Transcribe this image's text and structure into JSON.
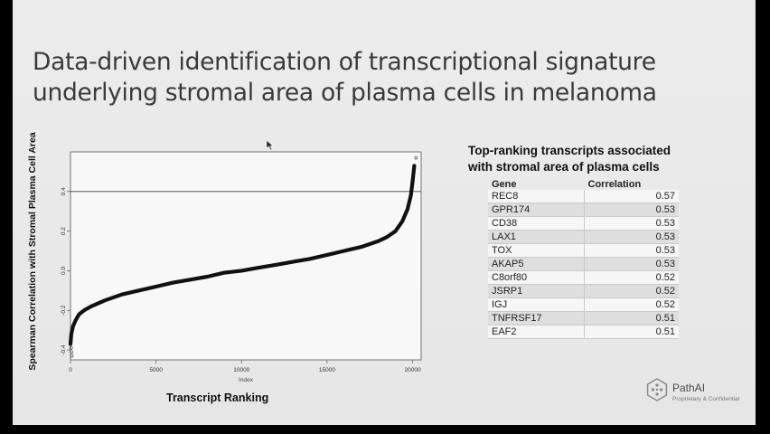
{
  "slide": {
    "title_line1": "Data-driven identification of transcriptional signature",
    "title_line2": "underlying stromal area of plasma cells in melanoma"
  },
  "chart_data": {
    "type": "scatter",
    "ylabel": "Spearman Correlation with Stromal Plasma Cell Area",
    "xlabel": "Transcript Ranking",
    "inner_xlabel": "Index",
    "xlim": [
      0,
      20500
    ],
    "ylim": [
      -0.45,
      0.6
    ],
    "x_ticks": [
      0,
      5000,
      10000,
      15000,
      20000
    ],
    "y_ticks": [
      -0.4,
      -0.2,
      0.0,
      0.2,
      0.4
    ],
    "y_tick_labels": [
      "-0.4",
      "-0.2",
      "0.0",
      "0.2",
      "0.4"
    ],
    "threshold_line": 0.4,
    "curve": {
      "x": [
        0,
        50,
        150,
        300,
        500,
        800,
        1200,
        2000,
        3000,
        4000,
        5000,
        6000,
        7000,
        8000,
        9000,
        10000,
        11000,
        12000,
        13000,
        14000,
        15000,
        16000,
        17000,
        18000,
        18500,
        19000,
        19400,
        19700,
        19900,
        20000,
        20100
      ],
      "y": [
        -0.37,
        -0.32,
        -0.28,
        -0.25,
        -0.22,
        -0.2,
        -0.18,
        -0.15,
        -0.12,
        -0.1,
        -0.08,
        -0.06,
        -0.045,
        -0.03,
        -0.01,
        0.0,
        0.015,
        0.03,
        0.045,
        0.06,
        0.08,
        0.1,
        0.12,
        0.15,
        0.17,
        0.2,
        0.25,
        0.31,
        0.38,
        0.45,
        0.53
      ]
    },
    "outliers": {
      "x": [
        20200,
        40,
        60,
        80
      ],
      "y": [
        0.57,
        -0.39,
        -0.41,
        -0.43
      ]
    }
  },
  "table": {
    "title_line1": "Top-ranking transcripts associated",
    "title_line2": "with stromal area of plasma cells",
    "headers": [
      "Gene",
      "Correlation"
    ],
    "rows": [
      {
        "gene": "REC8",
        "corr": "0.57"
      },
      {
        "gene": "GPR174",
        "corr": "0.53"
      },
      {
        "gene": "CD38",
        "corr": "0.53"
      },
      {
        "gene": "LAX1",
        "corr": "0.53"
      },
      {
        "gene": "TOX",
        "corr": "0.53"
      },
      {
        "gene": "AKAP5",
        "corr": "0.53"
      },
      {
        "gene": "C8orf80",
        "corr": "0.52"
      },
      {
        "gene": "JSRP1",
        "corr": "0.52"
      },
      {
        "gene": "IGJ",
        "corr": "0.52"
      },
      {
        "gene": "TNFRSF17",
        "corr": "0.51"
      },
      {
        "gene": "EAF2",
        "corr": "0.51"
      }
    ]
  },
  "logo": {
    "name": "PathAI",
    "subtitle": "Proprietary & Confidential",
    "color": "#8a8a8a"
  },
  "icons": {
    "cursor": "mouse-pointer-icon",
    "logo": "pathai-logo-icon"
  }
}
